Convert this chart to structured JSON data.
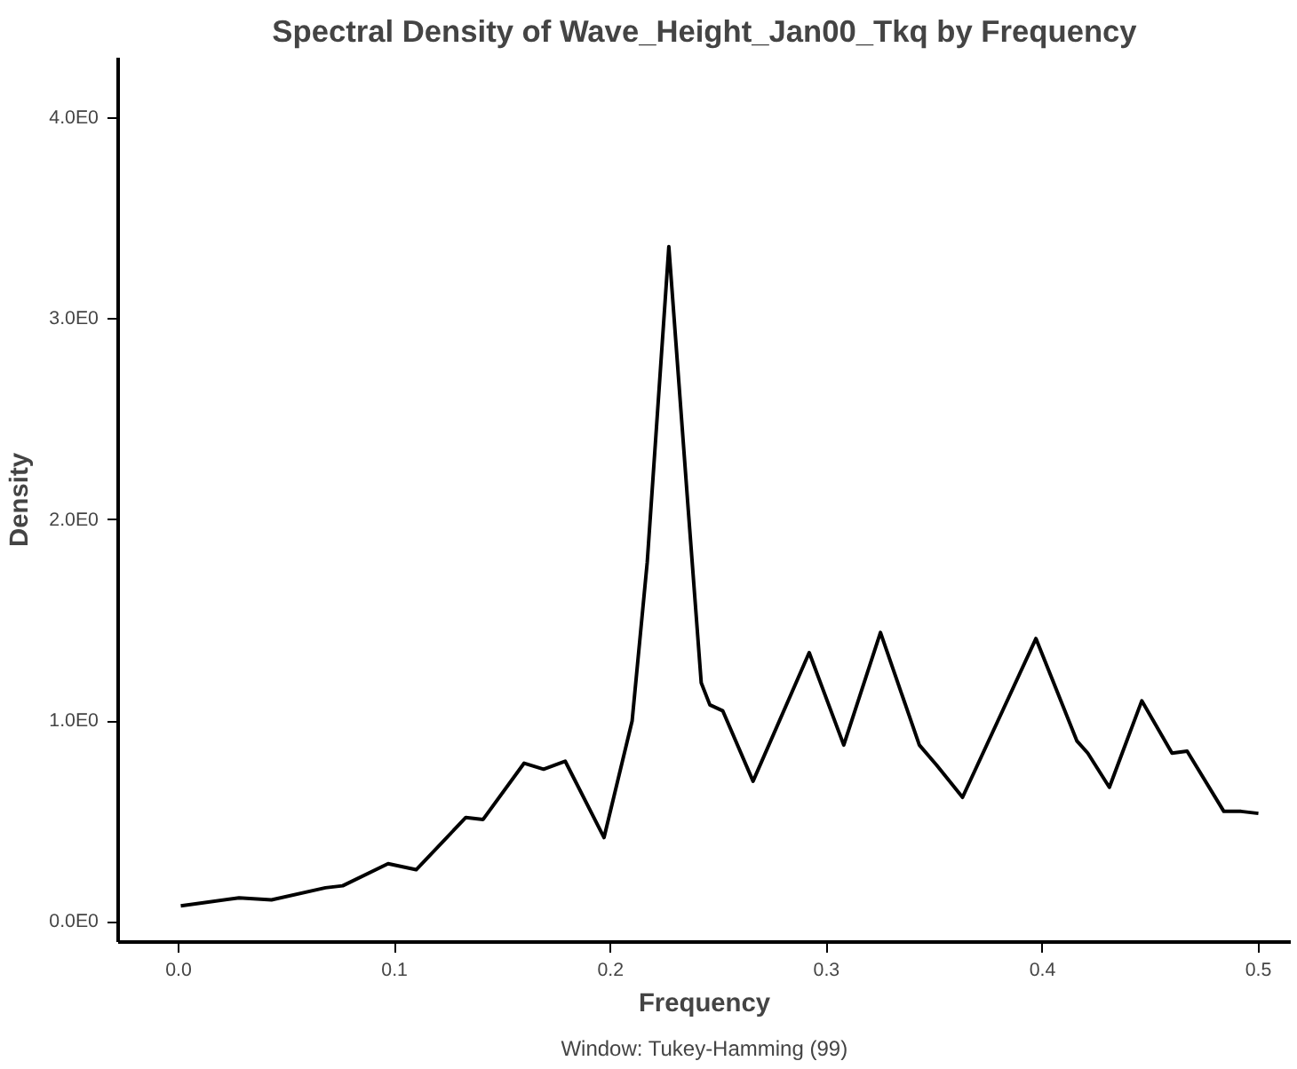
{
  "chart_data": {
    "type": "line",
    "title": "Spectral Density of Wave_Height_Jan00_Tkq by Frequency",
    "xlabel": "Frequency",
    "ylabel": "Density",
    "annotations": [
      "Window: Tukey-Hamming (99)"
    ],
    "series": [
      {
        "color": "#000000",
        "x": [
          0.001,
          0.028,
          0.043,
          0.068,
          0.076,
          0.097,
          0.11,
          0.133,
          0.141,
          0.16,
          0.169,
          0.179,
          0.197,
          0.21,
          0.217,
          0.227,
          0.236,
          0.242,
          0.246,
          0.252,
          0.266,
          0.292,
          0.308,
          0.325,
          0.343,
          0.351,
          0.363,
          0.397,
          0.416,
          0.421,
          0.431,
          0.446,
          0.46,
          0.467,
          0.484,
          0.492,
          0.5
        ],
        "values": [
          0.08,
          0.12,
          0.11,
          0.17,
          0.18,
          0.29,
          0.26,
          0.52,
          0.51,
          0.79,
          0.76,
          0.8,
          0.42,
          1.0,
          1.79,
          3.36,
          2.05,
          1.19,
          1.08,
          1.05,
          0.7,
          1.34,
          0.88,
          1.44,
          0.88,
          0.78,
          0.62,
          1.41,
          0.9,
          0.84,
          0.67,
          1.1,
          0.84,
          0.85,
          0.55,
          0.55,
          0.54
        ]
      }
    ],
    "xlim": [
      -0.028,
      0.515
    ],
    "xticks": [
      {
        "value": 0,
        "label": "0.0"
      },
      0.1,
      0.2,
      0.3,
      0.4,
      0.5
    ],
    "ylim": [
      -0.1,
      4.3
    ],
    "yticks": [
      {
        "value": 0,
        "label": "0.0E0"
      },
      {
        "value": 1,
        "label": "1.0E0"
      },
      {
        "value": 2,
        "label": "2.0E0"
      },
      {
        "value": 3,
        "label": "3.0E0"
      },
      {
        "value": 4,
        "label": "4.0E0"
      }
    ],
    "line_style": "solid"
  }
}
